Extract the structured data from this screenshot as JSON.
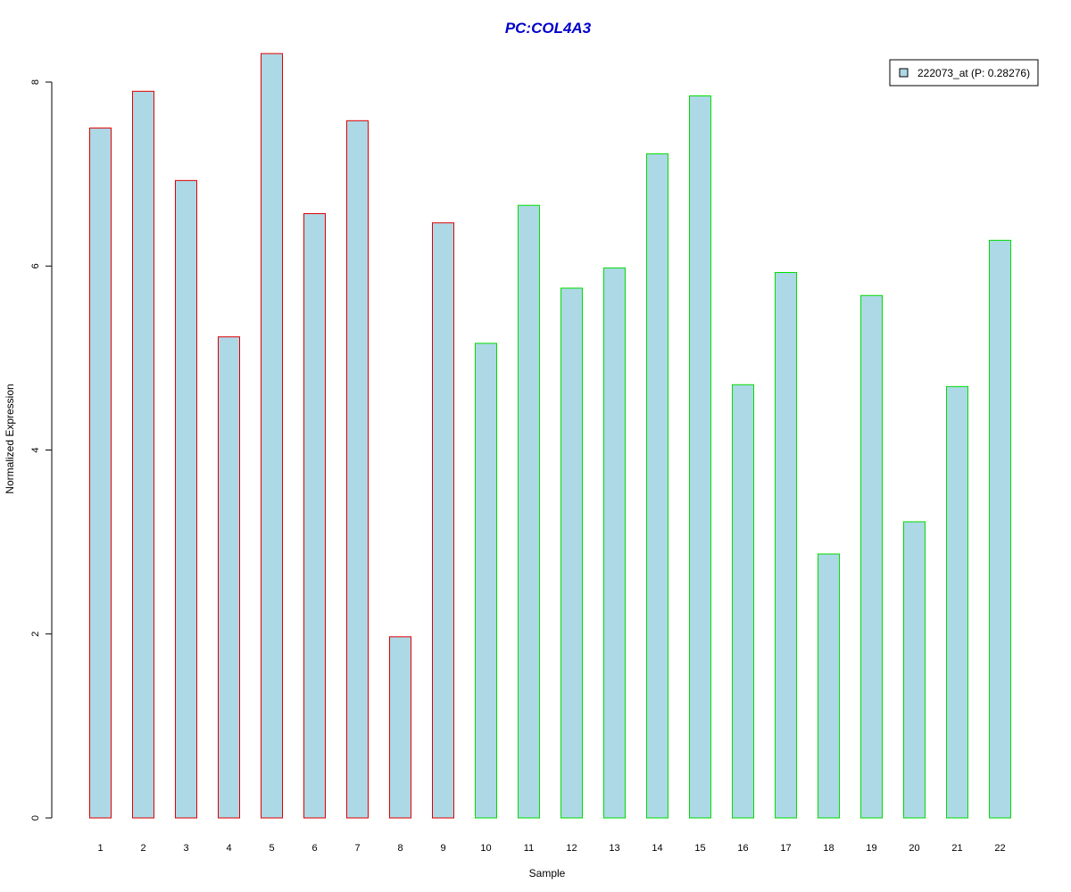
{
  "chart_data": {
    "type": "bar",
    "title": "PC:COL4A3",
    "title_color": "#0000cc",
    "xlabel": "Sample",
    "ylabel": "Normalized Expression",
    "categories": [
      "1",
      "2",
      "3",
      "4",
      "5",
      "6",
      "7",
      "8",
      "9",
      "10",
      "11",
      "12",
      "13",
      "14",
      "15",
      "16",
      "17",
      "18",
      "19",
      "20",
      "21",
      "22"
    ],
    "values": [
      7.5,
      7.9,
      6.93,
      5.23,
      8.31,
      6.57,
      7.58,
      1.97,
      6.47,
      5.16,
      6.66,
      5.76,
      5.98,
      7.22,
      7.85,
      4.71,
      5.93,
      2.87,
      5.68,
      3.22,
      4.69,
      6.28
    ],
    "groups": [
      "a",
      "a",
      "a",
      "a",
      "a",
      "a",
      "a",
      "a",
      "a",
      "b",
      "b",
      "b",
      "b",
      "b",
      "b",
      "b",
      "b",
      "b",
      "b",
      "b",
      "b",
      "b"
    ],
    "y_ticks": [
      0,
      2,
      4,
      6,
      8
    ],
    "ylim": [
      0,
      8.3
    ],
    "grid": false,
    "legend": {
      "placement": "top-right",
      "entries": [
        {
          "label": "222073_at (P: 0.28276)",
          "color": "#add8e6"
        }
      ]
    },
    "colors": {
      "bar_fill": "#add8e6",
      "border_a": "#e00000",
      "border_b": "#00dd00",
      "axis": "#000000"
    }
  }
}
